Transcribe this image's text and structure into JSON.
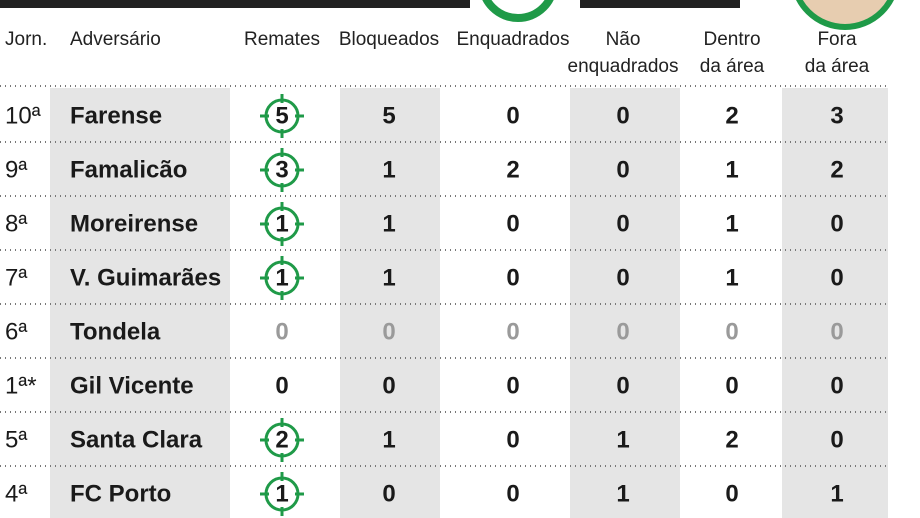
{
  "table": {
    "headers": [
      [
        "Jorn."
      ],
      [
        "Adversário"
      ],
      [
        "Remates"
      ],
      [
        "Bloqueados"
      ],
      [
        "Enquadrados"
      ],
      [
        "Não",
        "enquadrados"
      ],
      [
        "Dentro",
        "da área"
      ],
      [
        "Fora",
        "da área"
      ]
    ],
    "rows": [
      [
        "10ª",
        "Farense",
        5,
        5,
        0,
        0,
        2,
        3
      ],
      [
        "9ª",
        "Famalicão",
        3,
        1,
        2,
        0,
        1,
        2
      ],
      [
        "8ª",
        "Moreirense",
        1,
        1,
        0,
        0,
        1,
        0
      ],
      [
        "7ª",
        "V. Guimarães",
        1,
        1,
        0,
        0,
        1,
        0
      ],
      [
        "6ª",
        "Tondela",
        0,
        0,
        0,
        0,
        0,
        0
      ],
      [
        "1ª*",
        "Gil Vicente",
        0,
        0,
        0,
        0,
        0,
        0
      ],
      [
        "5ª",
        "Santa Clara",
        2,
        1,
        0,
        1,
        2,
        0
      ],
      [
        "4ª",
        "FC Porto",
        1,
        0,
        0,
        1,
        0,
        1
      ]
    ]
  }
}
